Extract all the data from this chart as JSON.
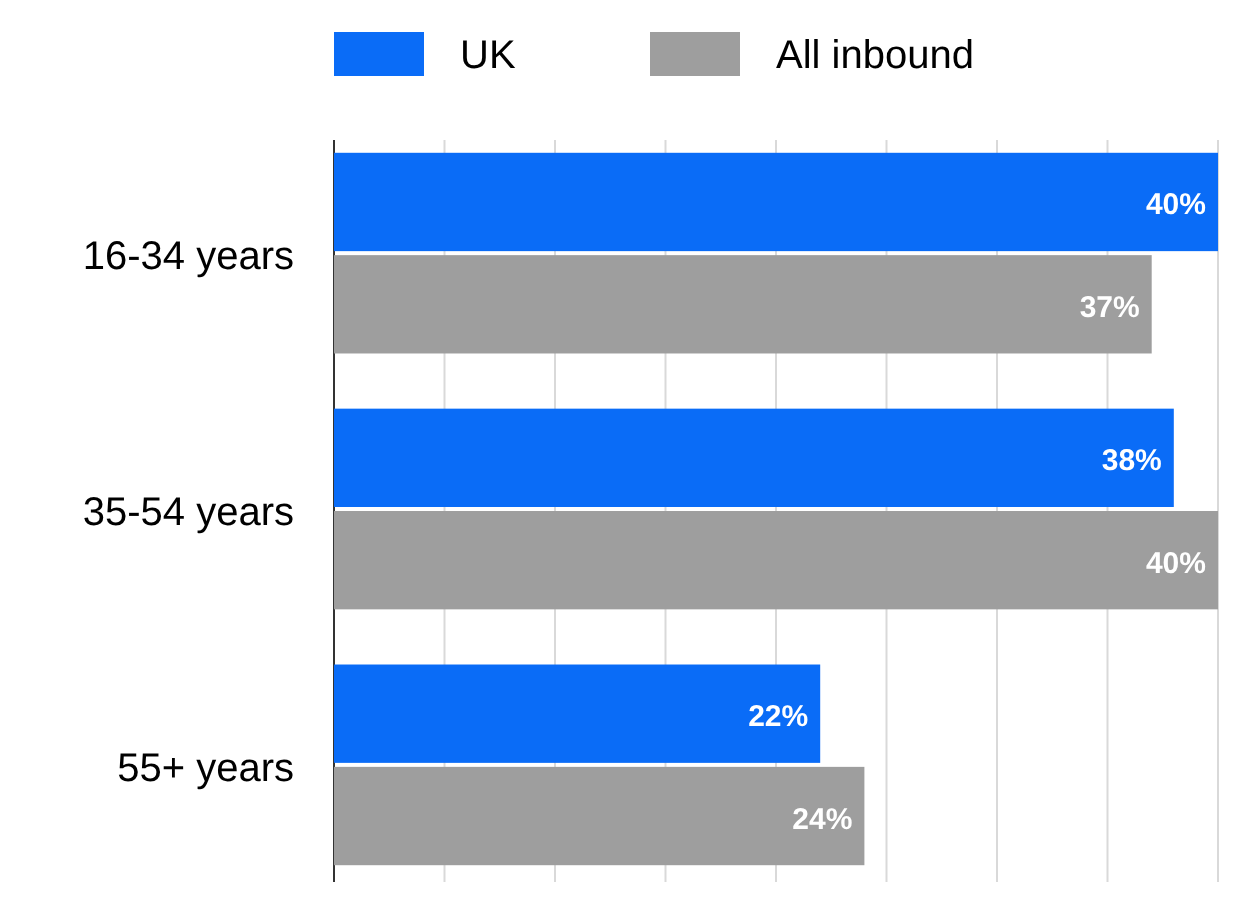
{
  "chart_data": {
    "type": "bar",
    "orientation": "horizontal",
    "categories": [
      "16-34 years",
      "35-54 years",
      "55+ years"
    ],
    "series": [
      {
        "name": "UK",
        "color": "#0a6cf7",
        "values": [
          40,
          38,
          22
        ],
        "value_labels": [
          "40%",
          "38%",
          "22%"
        ]
      },
      {
        "name": "All inbound",
        "color": "#9e9e9e",
        "values": [
          37,
          40,
          24
        ],
        "value_labels": [
          "37%",
          "40%",
          "24%"
        ]
      }
    ],
    "xlim": [
      0,
      40
    ],
    "xticks": [
      {
        "value": 0,
        "label": null
      },
      {
        "value": 5,
        "label": null
      },
      {
        "value": 10,
        "label": null
      },
      {
        "value": 15,
        "label": null
      },
      {
        "value": 20,
        "label": null
      },
      {
        "value": 25,
        "label": null
      },
      {
        "value": 30,
        "label": null
      },
      {
        "value": 35,
        "label": null
      },
      {
        "value": 40,
        "label": null
      }
    ],
    "grid": "x",
    "legend": "top"
  }
}
